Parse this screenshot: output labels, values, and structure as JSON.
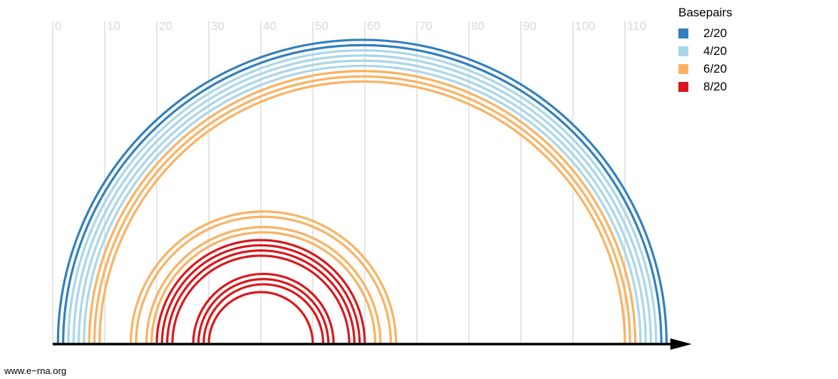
{
  "chart_data": {
    "type": "arc",
    "x_ticks": [
      0,
      10,
      20,
      30,
      40,
      50,
      60,
      70,
      80,
      90,
      100,
      110
    ],
    "x_range": [
      0,
      122
    ],
    "sequence_length": 118,
    "grid": true,
    "legend": {
      "title": "Basepairs",
      "placement": "top-right",
      "entries": [
        {
          "label": "2/20",
          "color": "#3180bc"
        },
        {
          "label": "4/20",
          "color": "#a9d6e8"
        },
        {
          "label": "6/20",
          "color": "#fbb161"
        },
        {
          "label": "8/20",
          "color": "#d7191c"
        }
      ]
    },
    "basepairs": [
      {
        "i": 1,
        "j": 118,
        "group": "2/20"
      },
      {
        "i": 2,
        "j": 117,
        "group": "2/20"
      },
      {
        "i": 3,
        "j": 116,
        "group": "4/20"
      },
      {
        "i": 4,
        "j": 115,
        "group": "4/20"
      },
      {
        "i": 5,
        "j": 114,
        "group": "4/20"
      },
      {
        "i": 6,
        "j": 113,
        "group": "4/20"
      },
      {
        "i": 7,
        "j": 112,
        "group": "6/20"
      },
      {
        "i": 8,
        "j": 111,
        "group": "6/20"
      },
      {
        "i": 9,
        "j": 110,
        "group": "6/20"
      },
      {
        "i": 15,
        "j": 66,
        "group": "6/20"
      },
      {
        "i": 16,
        "j": 65,
        "group": "6/20"
      },
      {
        "i": 18,
        "j": 63,
        "group": "6/20"
      },
      {
        "i": 19,
        "j": 62,
        "group": "6/20"
      },
      {
        "i": 20,
        "j": 60,
        "group": "8/20"
      },
      {
        "i": 21,
        "j": 59,
        "group": "8/20"
      },
      {
        "i": 22,
        "j": 58,
        "group": "8/20"
      },
      {
        "i": 23,
        "j": 57,
        "group": "8/20"
      },
      {
        "i": 27,
        "j": 54,
        "group": "8/20"
      },
      {
        "i": 28,
        "j": 53,
        "group": "8/20"
      },
      {
        "i": 29,
        "j": 52,
        "group": "8/20"
      },
      {
        "i": 30,
        "j": 50,
        "group": "8/20"
      }
    ]
  },
  "footer": {
    "watermark": "www.e−rna.org"
  }
}
